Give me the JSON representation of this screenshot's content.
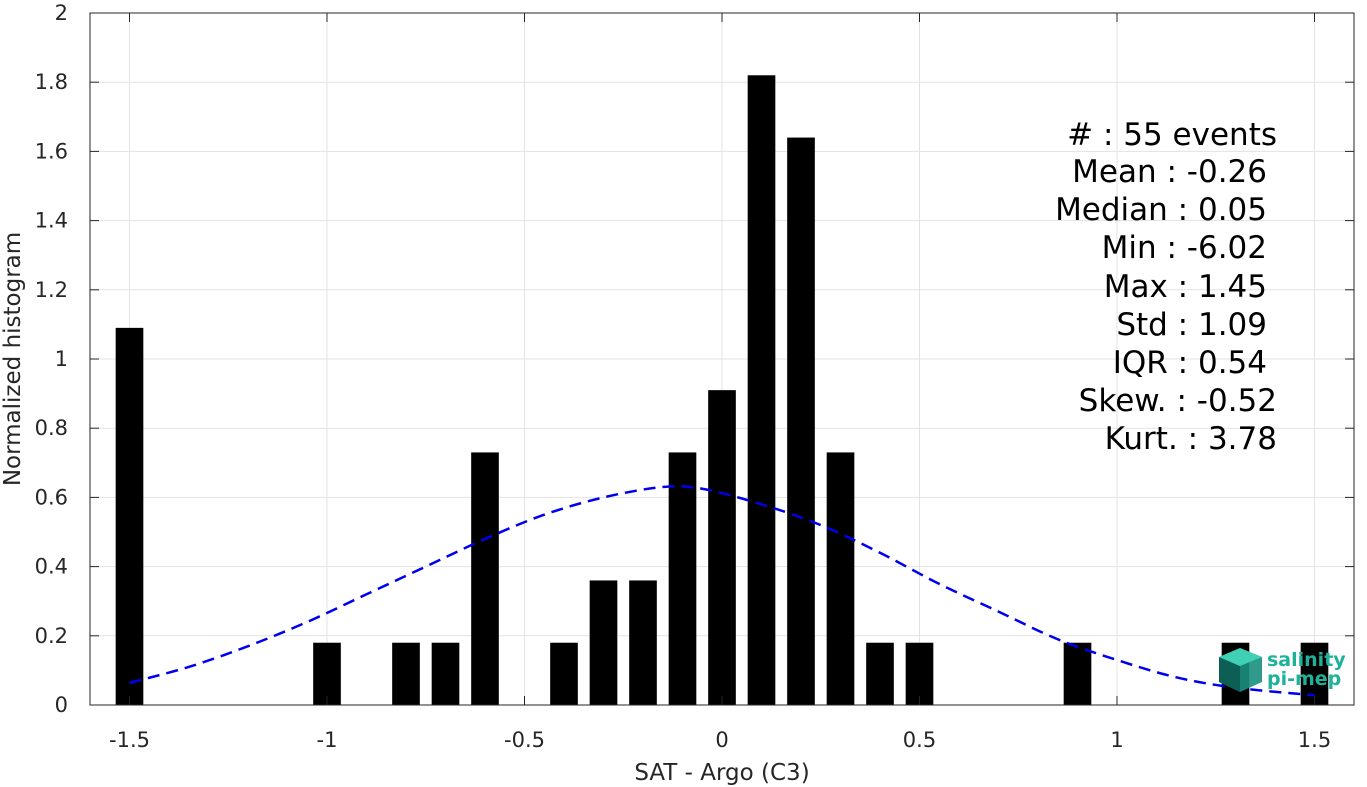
{
  "chart_data": {
    "type": "bar",
    "xlabel": "SAT - Argo (C3)",
    "ylabel": "Normalized histogram",
    "xlim": [
      -1.6,
      1.6
    ],
    "ylim": [
      0,
      2
    ],
    "grid": true,
    "xticks": [
      -1.5,
      -1,
      -0.5,
      0,
      0.5,
      1,
      1.5
    ],
    "xtick_labels": [
      "-1.5",
      "-1",
      "-0.5",
      "0",
      "0.5",
      "1",
      "1.5"
    ],
    "yticks": [
      0,
      0.2,
      0.4,
      0.6,
      0.8,
      1,
      1.2,
      1.4,
      1.6,
      1.8,
      2
    ],
    "ytick_labels": [
      "0",
      "0.2",
      "0.4",
      "0.6",
      "0.8",
      "1",
      "1.2",
      "1.4",
      "1.6",
      "1.8",
      "2"
    ],
    "bar_width": 0.07,
    "bar_color": "#000000",
    "bars": [
      {
        "x": -1.5,
        "y": 1.09
      },
      {
        "x": -1.0,
        "y": 0.18
      },
      {
        "x": -0.8,
        "y": 0.18
      },
      {
        "x": -0.7,
        "y": 0.18
      },
      {
        "x": -0.6,
        "y": 0.73
      },
      {
        "x": -0.4,
        "y": 0.18
      },
      {
        "x": -0.3,
        "y": 0.36
      },
      {
        "x": -0.2,
        "y": 0.36
      },
      {
        "x": -0.1,
        "y": 0.73
      },
      {
        "x": 0.0,
        "y": 0.91
      },
      {
        "x": 0.1,
        "y": 1.82
      },
      {
        "x": 0.2,
        "y": 1.64
      },
      {
        "x": 0.3,
        "y": 0.73
      },
      {
        "x": 0.4,
        "y": 0.18
      },
      {
        "x": 0.5,
        "y": 0.18
      },
      {
        "x": 0.9,
        "y": 0.18
      },
      {
        "x": 1.3,
        "y": 0.18
      },
      {
        "x": 1.5,
        "y": 0.18
      }
    ],
    "fit_curve": {
      "style": "dashed",
      "color": "#0000ee",
      "x": [
        -1.5,
        -1.35,
        -1.2,
        -1.05,
        -0.9,
        -0.75,
        -0.6,
        -0.45,
        -0.3,
        -0.15,
        -0.05,
        0.1,
        0.25,
        0.4,
        0.55,
        0.7,
        0.85,
        1.0,
        1.15,
        1.3,
        1.5
      ],
      "y": [
        0.064,
        0.11,
        0.17,
        0.24,
        0.32,
        0.4,
        0.48,
        0.55,
        0.6,
        0.63,
        0.625,
        0.58,
        0.52,
        0.44,
        0.35,
        0.27,
        0.19,
        0.13,
        0.08,
        0.05,
        0.028
      ]
    },
    "stats_lines": [
      "#  : 55 events",
      "Mean : -0.26",
      "Median : 0.05",
      "Min : -6.02",
      "Max : 1.45",
      "Std : 1.09",
      "IQR : 0.54",
      "Skew. : -0.52",
      "Kurt. : 3.78"
    ],
    "logo": {
      "line1": "salinity",
      "line2": "pi-mep"
    }
  }
}
